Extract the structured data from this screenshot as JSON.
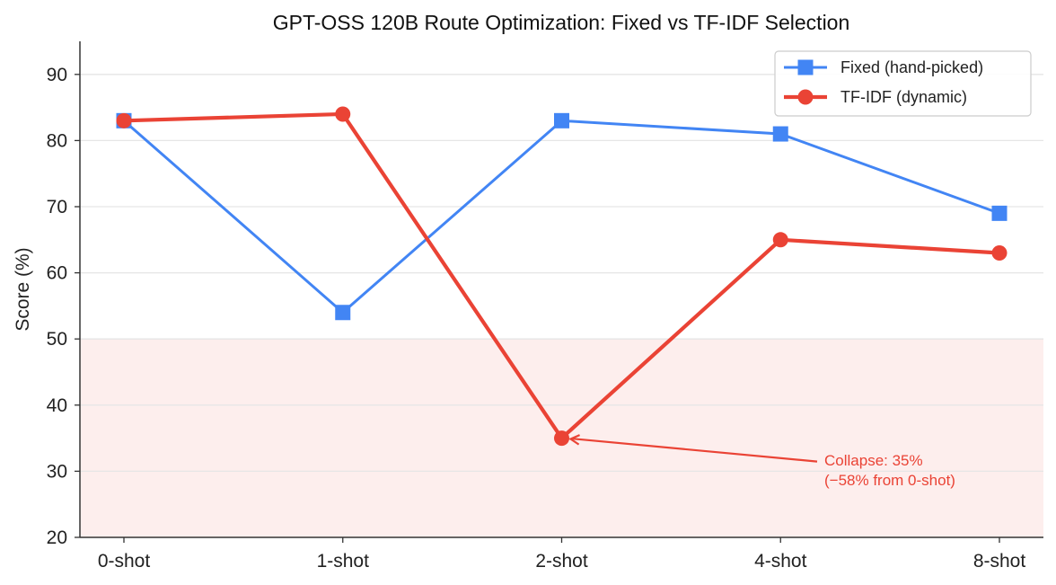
{
  "chart_data": {
    "type": "line",
    "title": "GPT-OSS 120B Route Optimization: Fixed vs TF-IDF Selection",
    "xlabel": "",
    "ylabel": "Score (%)",
    "categories": [
      "0-shot",
      "1-shot",
      "2-shot",
      "4-shot",
      "8-shot"
    ],
    "ylim": [
      20,
      95
    ],
    "yticks": [
      20,
      30,
      40,
      50,
      60,
      70,
      80,
      90
    ],
    "grid": true,
    "legend_position": "top-right",
    "shaded_band": {
      "from": 20,
      "to": 50,
      "color": "#fdeeed"
    },
    "series": [
      {
        "name": "Fixed (hand-picked)",
        "color": "#4285f4",
        "marker": "square",
        "values": [
          83,
          54,
          83,
          81,
          69
        ]
      },
      {
        "name": "TF-IDF (dynamic)",
        "color": "#ea4335",
        "marker": "circle",
        "values": [
          83,
          84,
          35,
          65,
          63
        ]
      }
    ],
    "annotation": {
      "lines": [
        "Collapse: 35%",
        "(−58% from 0-shot)"
      ],
      "target_category": "2-shot",
      "target_value": 35,
      "color": "#ea4335"
    }
  }
}
